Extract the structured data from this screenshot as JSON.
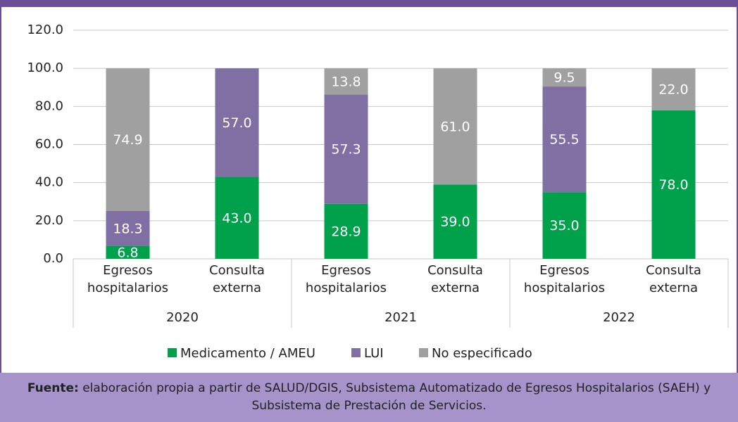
{
  "chart_data": {
    "type": "stacked_bar",
    "categories": [
      "Egresos hospitalarios",
      "Consulta externa",
      "Egresos hospitalarios",
      "Consulta externa",
      "Egresos hospitalarios",
      "Consulta externa"
    ],
    "groups": [
      "2020",
      "2021",
      "2022"
    ],
    "series": [
      {
        "name": "Medicamento / AMEU",
        "color": "#00a14b",
        "values": [
          6.8,
          43.0,
          28.9,
          39.0,
          35.0,
          78.0
        ],
        "value_labels": [
          "6.8",
          "43.0",
          "28.9",
          "39.0",
          "35.0",
          "78.0"
        ]
      },
      {
        "name": "LUI",
        "color": "#7f6fa3",
        "values": [
          18.3,
          57.0,
          57.3,
          null,
          55.5,
          null
        ],
        "value_labels": [
          "18.3",
          "57.0",
          "57.3",
          null,
          "55.5",
          null
        ]
      },
      {
        "name": "No especificado",
        "color": "#a0a0a0",
        "values": [
          74.9,
          null,
          13.8,
          61.0,
          9.5,
          22.0
        ],
        "value_labels": [
          "74.9",
          null,
          "13.8",
          "61.0",
          "9.5",
          "22.0"
        ]
      }
    ],
    "ylim": [
      0,
      120
    ],
    "yticks": [
      {
        "value": 0,
        "label": "0.0"
      },
      {
        "value": 20,
        "label": "20.0"
      },
      {
        "value": 40,
        "label": "40.0"
      },
      {
        "value": 60,
        "label": "60.0"
      },
      {
        "value": 80,
        "label": "80.0"
      },
      {
        "value": 100,
        "label": "100.0"
      },
      {
        "value": 120,
        "label": "120.0"
      }
    ],
    "grid": true,
    "source_label": "Fuente:",
    "source_text": "elaboración propia a partir de SALUD/DGIS, Subsistema Automatizado de Egresos Hospitalarios (SAEH) y Subsistema de Prestación de Servicios."
  }
}
